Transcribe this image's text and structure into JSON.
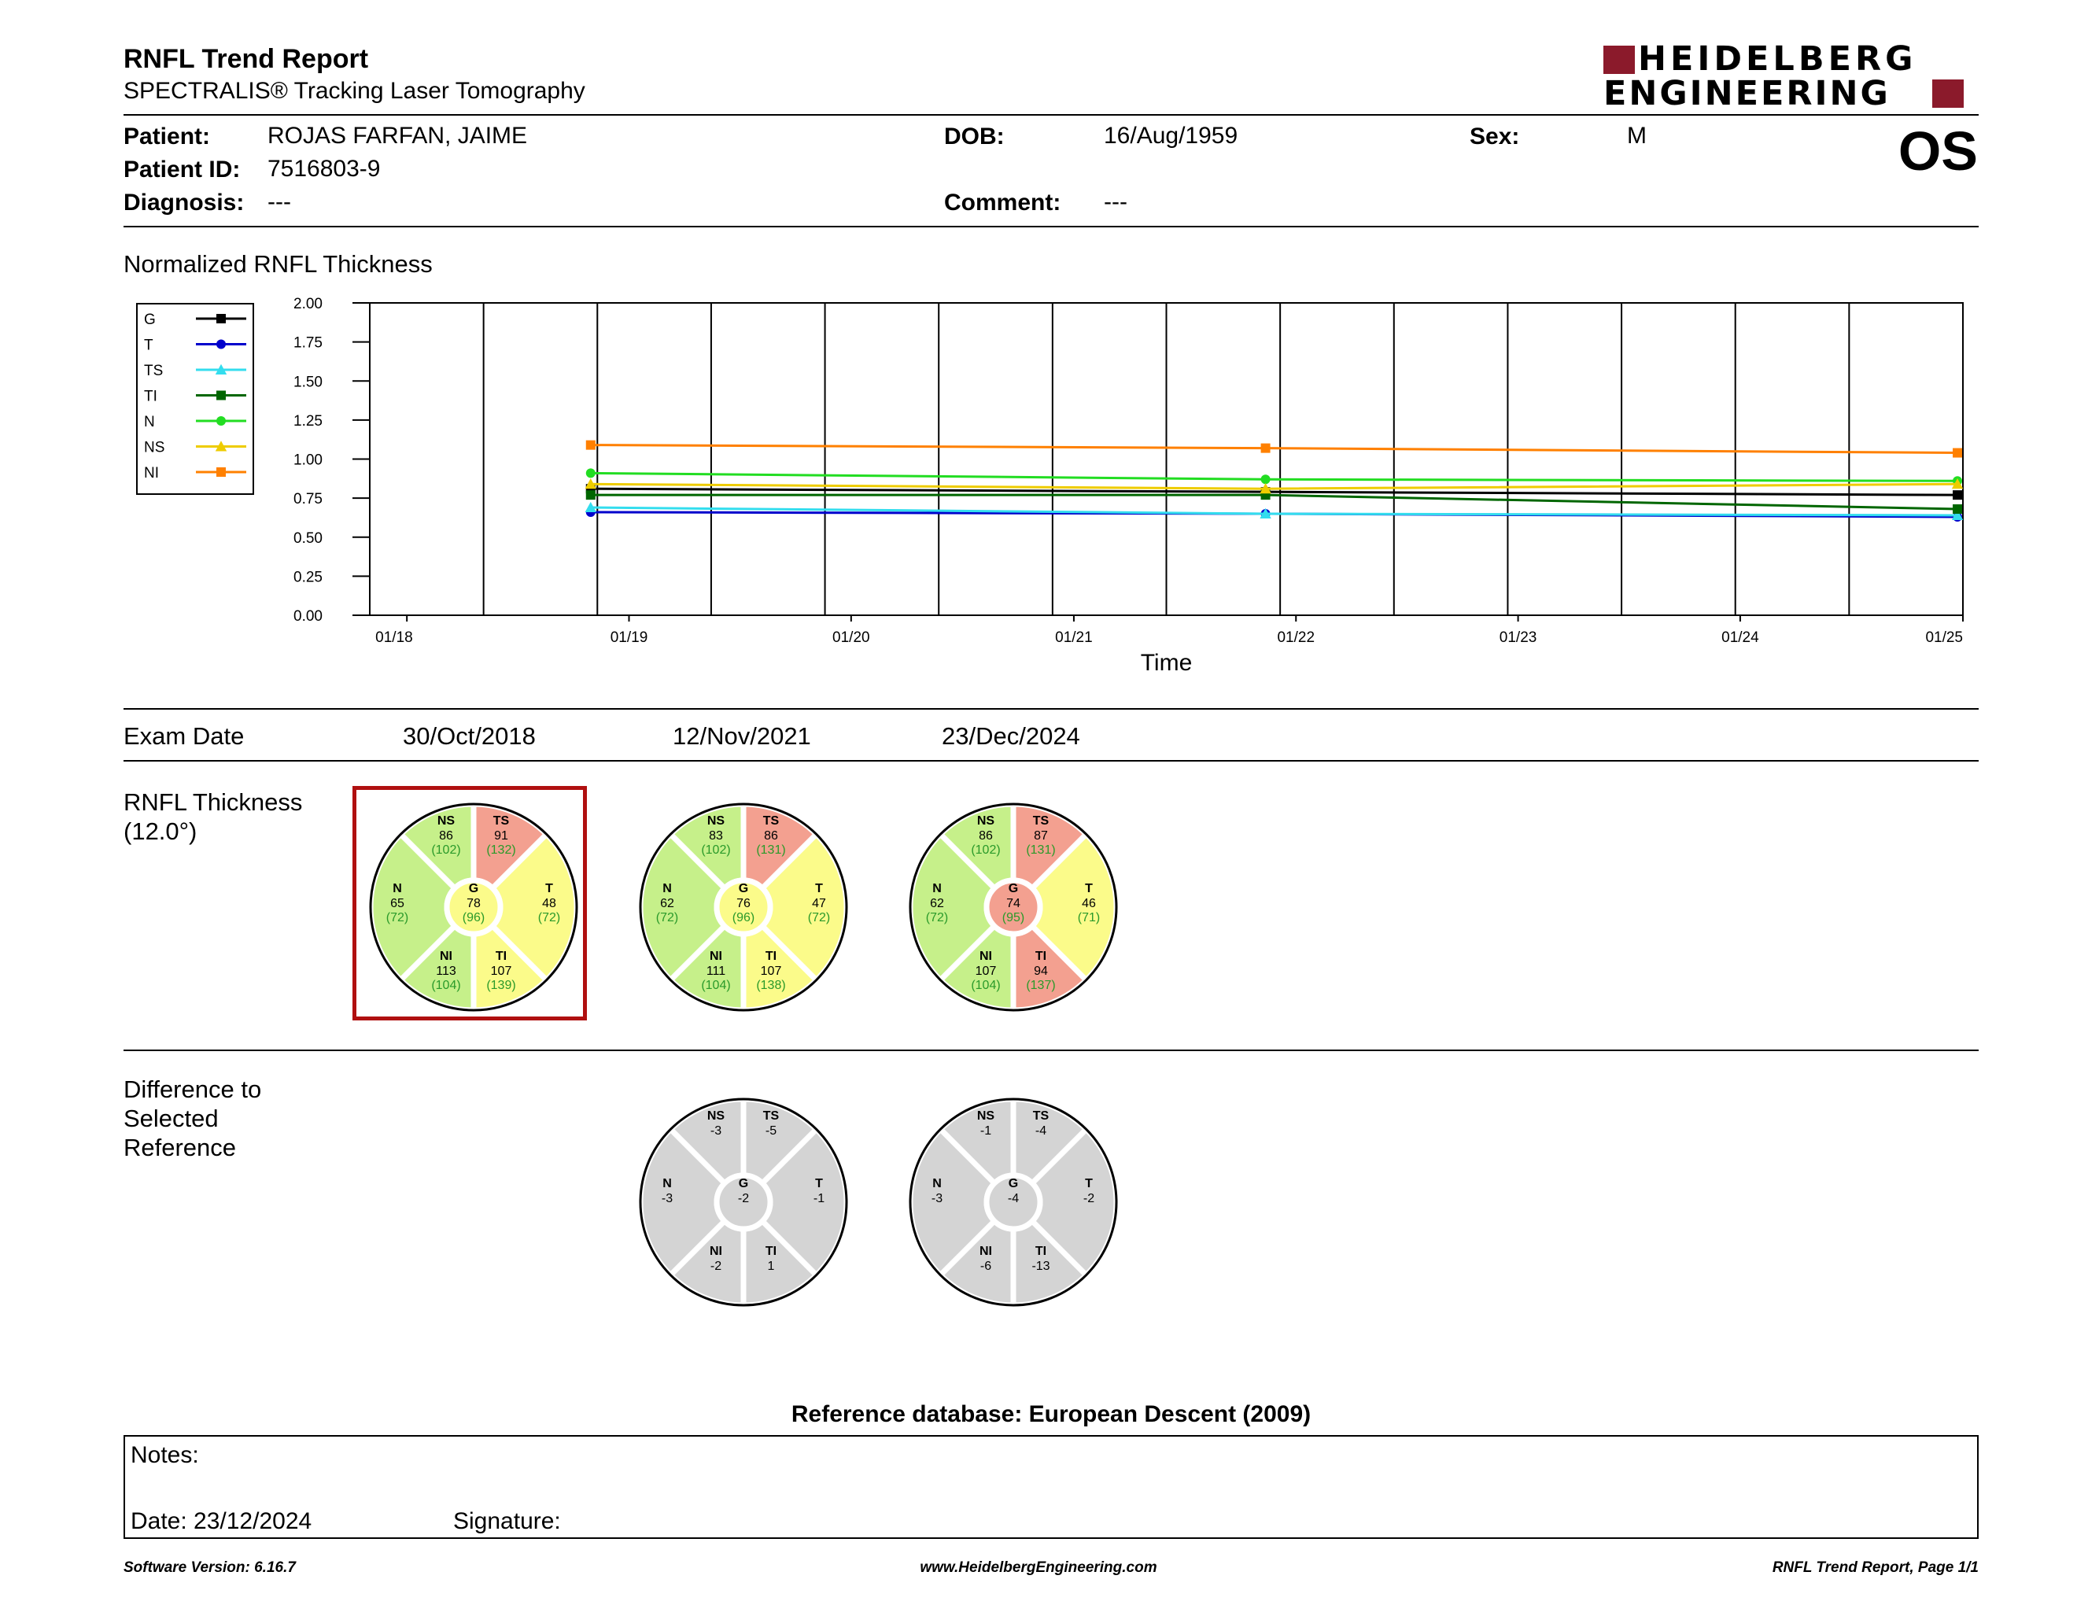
{
  "header": {
    "title": "RNFL Trend Report",
    "subtitle": "SPECTRALIS® Tracking Laser Tomography",
    "logo_line1": "HEIDELBERG",
    "logo_line2": "ENGINEERING",
    "logo_color": "#8b1a2b",
    "eye": "OS"
  },
  "patient": {
    "patient_label": "Patient:",
    "patient": "ROJAS FARFAN, JAIME",
    "id_label": "Patient ID:",
    "id": "7516803-9",
    "diagnosis_label": "Diagnosis:",
    "diagnosis": "---",
    "dob_label": "DOB:",
    "dob": "16/Aug/1959",
    "comment_label": "Comment:",
    "comment": "---",
    "sex_label": "Sex:",
    "sex": "M"
  },
  "chart_section_title": "Normalized RNFL Thickness",
  "chart_data": {
    "type": "line",
    "title": "Normalized RNFL Thickness",
    "xlabel": "Time",
    "ylabel": "",
    "ylim": [
      0,
      2.0
    ],
    "yticks": [
      "0.00",
      "0.25",
      "0.50",
      "0.75",
      "1.00",
      "1.25",
      "1.50",
      "1.75",
      "2.00"
    ],
    "xlim": [
      "2017-11-01",
      "2025-01-01"
    ],
    "xticks": [
      {
        "label": "01/18",
        "date": "2018-01-01"
      },
      {
        "label": "01/19",
        "date": "2019-01-01"
      },
      {
        "label": "01/20",
        "date": "2020-01-01"
      },
      {
        "label": "01/21",
        "date": "2021-01-01"
      },
      {
        "label": "01/22",
        "date": "2022-01-01"
      },
      {
        "label": "01/23",
        "date": "2023-01-01"
      },
      {
        "label": "01/24",
        "date": "2024-01-01"
      },
      {
        "label": "01/25",
        "date": "2025-01-01"
      }
    ],
    "x": [
      "2018-10-30",
      "2021-11-12",
      "2024-12-23"
    ],
    "grid": true,
    "legend_position": "left",
    "series": [
      {
        "name": "G",
        "color": "#000000",
        "marker": "square",
        "values": [
          0.81,
          0.79,
          0.77
        ]
      },
      {
        "name": "T",
        "color": "#0000cc",
        "marker": "circle",
        "values": [
          0.66,
          0.65,
          0.63
        ]
      },
      {
        "name": "TS",
        "color": "#33ddee",
        "marker": "triangle",
        "values": [
          0.69,
          0.65,
          0.64
        ]
      },
      {
        "name": "TI",
        "color": "#006600",
        "marker": "square",
        "values": [
          0.77,
          0.77,
          0.68
        ]
      },
      {
        "name": "N",
        "color": "#22dd22",
        "marker": "circle",
        "values": [
          0.91,
          0.87,
          0.86
        ]
      },
      {
        "name": "NS",
        "color": "#eecc00",
        "marker": "triangle",
        "values": [
          0.84,
          0.81,
          0.84
        ]
      },
      {
        "name": "NI",
        "color": "#ff8000",
        "marker": "square",
        "values": [
          1.09,
          1.07,
          1.04
        ]
      }
    ]
  },
  "exams": {
    "label": "Exam Date",
    "dates": [
      "30/Oct/2018",
      "12/Nov/2021",
      "23/Dec/2024"
    ]
  },
  "thickness": {
    "label_line1": "RNFL Thickness",
    "label_line2": "(12.0°)",
    "wheels": [
      {
        "selected": true,
        "NS": {
          "name": "NS",
          "value": "86",
          "normal": "(102)",
          "status": "green"
        },
        "TS": {
          "name": "TS",
          "value": "91",
          "normal": "(132)",
          "status": "red"
        },
        "N": {
          "name": "N",
          "value": "65",
          "normal": "(72)",
          "status": "green"
        },
        "G": {
          "name": "G",
          "value": "78",
          "normal": "(96)",
          "status": "yellow"
        },
        "T": {
          "name": "T",
          "value": "48",
          "normal": "(72)",
          "status": "yellow"
        },
        "NI": {
          "name": "NI",
          "value": "113",
          "normal": "(104)",
          "status": "green"
        },
        "TI": {
          "name": "TI",
          "value": "107",
          "normal": "(139)",
          "status": "yellow"
        }
      },
      {
        "selected": false,
        "NS": {
          "name": "NS",
          "value": "83",
          "normal": "(102)",
          "status": "green"
        },
        "TS": {
          "name": "TS",
          "value": "86",
          "normal": "(131)",
          "status": "red"
        },
        "N": {
          "name": "N",
          "value": "62",
          "normal": "(72)",
          "status": "green"
        },
        "G": {
          "name": "G",
          "value": "76",
          "normal": "(96)",
          "status": "yellow"
        },
        "T": {
          "name": "T",
          "value": "47",
          "normal": "(72)",
          "status": "yellow"
        },
        "NI": {
          "name": "NI",
          "value": "111",
          "normal": "(104)",
          "status": "green"
        },
        "TI": {
          "name": "TI",
          "value": "107",
          "normal": "(138)",
          "status": "yellow"
        }
      },
      {
        "selected": false,
        "NS": {
          "name": "NS",
          "value": "86",
          "normal": "(102)",
          "status": "green"
        },
        "TS": {
          "name": "TS",
          "value": "87",
          "normal": "(131)",
          "status": "red"
        },
        "N": {
          "name": "N",
          "value": "62",
          "normal": "(72)",
          "status": "green"
        },
        "G": {
          "name": "G",
          "value": "74",
          "normal": "(95)",
          "status": "red"
        },
        "T": {
          "name": "T",
          "value": "46",
          "normal": "(71)",
          "status": "yellow"
        },
        "NI": {
          "name": "NI",
          "value": "107",
          "normal": "(104)",
          "status": "green"
        },
        "TI": {
          "name": "TI",
          "value": "94",
          "normal": "(137)",
          "status": "red"
        }
      }
    ]
  },
  "difference": {
    "label_line1": "Difference to",
    "label_line2": "Selected",
    "label_line3": "Reference",
    "wheels": [
      {
        "NS": {
          "name": "NS",
          "value": "-3"
        },
        "TS": {
          "name": "TS",
          "value": "-5"
        },
        "N": {
          "name": "N",
          "value": "-3"
        },
        "G": {
          "name": "G",
          "value": "-2"
        },
        "T": {
          "name": "T",
          "value": "-1"
        },
        "NI": {
          "name": "NI",
          "value": "-2"
        },
        "TI": {
          "name": "TI",
          "value": "1"
        }
      },
      {
        "NS": {
          "name": "NS",
          "value": "-1"
        },
        "TS": {
          "name": "TS",
          "value": "-4"
        },
        "N": {
          "name": "N",
          "value": "-3"
        },
        "G": {
          "name": "G",
          "value": "-4"
        },
        "T": {
          "name": "T",
          "value": "-2"
        },
        "NI": {
          "name": "NI",
          "value": "-6"
        },
        "TI": {
          "name": "TI",
          "value": "-13"
        }
      }
    ]
  },
  "status_colors": {
    "green": "#c6f08a",
    "yellow": "#fbfb8a",
    "red": "#f3a090",
    "gray": "#d4d4d4",
    "normal_text": "#2a9a2a",
    "selection": "#b01010"
  },
  "reference_db": "Reference database: European Descent (2009)",
  "notes": {
    "notes_label": "Notes:",
    "date_label": "Date: 23/12/2024",
    "signature_label": "Signature:"
  },
  "footer": {
    "software": "Software Version: 6.16.7",
    "website": "www.HeidelbergEngineering.com",
    "page": "RNFL Trend Report, Page 1/1"
  }
}
